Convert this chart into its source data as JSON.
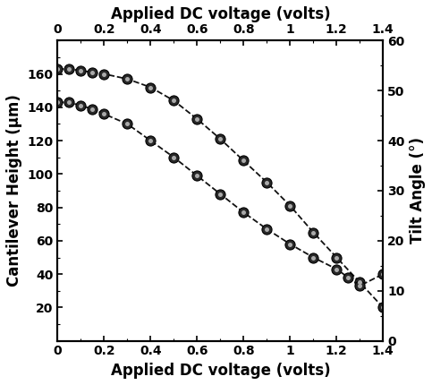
{
  "title_top": "Applied DC voltage (volts)",
  "xlabel": "Applied DC voltage (volts)",
  "ylabel_left": "Cantilever Height (μm)",
  "ylabel_right": "Tilt Angle (°)",
  "xlim": [
    0,
    1.4
  ],
  "ylim_left": [
    0,
    180
  ],
  "ylim_right": [
    0,
    60
  ],
  "xticks": [
    0,
    0.2,
    0.4,
    0.6,
    0.8,
    1.0,
    1.2,
    1.4
  ],
  "xtick_labels": [
    "0",
    "0.2",
    "0.4",
    "0.6",
    "0.8",
    "1",
    "1.2",
    "1.4"
  ],
  "yticks_left": [
    20,
    40,
    60,
    80,
    100,
    120,
    140,
    160
  ],
  "yticks_right": [
    0,
    10,
    20,
    30,
    40,
    50,
    60
  ],
  "curve1_x": [
    0,
    0.05,
    0.1,
    0.15,
    0.2,
    0.3,
    0.4,
    0.5,
    0.6,
    0.7,
    0.8,
    0.9,
    1.0,
    1.1,
    1.2,
    1.3,
    1.4
  ],
  "curve1_y": [
    163,
    163,
    162,
    161,
    160,
    157,
    152,
    144,
    133,
    121,
    108,
    95,
    81,
    65,
    50,
    35,
    20
  ],
  "curve2_x": [
    0,
    0.05,
    0.1,
    0.15,
    0.2,
    0.3,
    0.4,
    0.5,
    0.6,
    0.7,
    0.8,
    0.9,
    1.0,
    1.1,
    1.2,
    1.25,
    1.3,
    1.4
  ],
  "curve2_y": [
    143,
    143,
    141,
    139,
    136,
    130,
    120,
    110,
    99,
    88,
    77,
    67,
    58,
    50,
    43,
    38,
    33,
    40
  ],
  "line_color": "#111111",
  "marker_color_face": "#404040",
  "marker_color_edge": "#000000",
  "marker_size": 8,
  "line_width": 1.3,
  "background_color": "#ffffff",
  "font_size_labels": 12,
  "font_size_ticks": 10,
  "spine_linewidth": 1.5
}
